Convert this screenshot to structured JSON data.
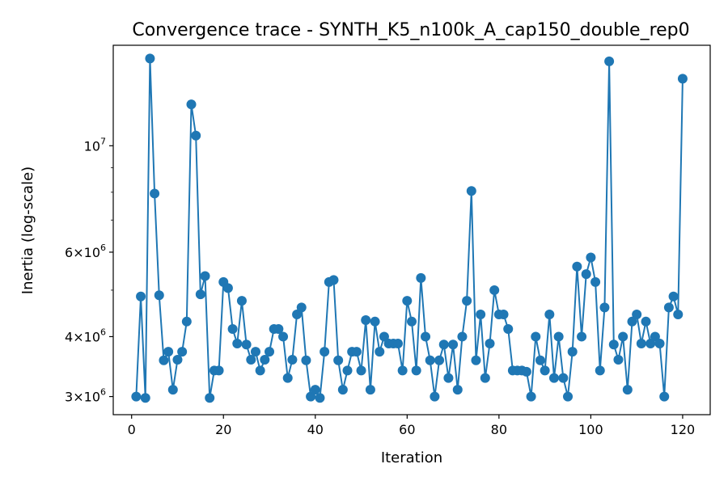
{
  "chart_data": {
    "type": "line",
    "title": "Convergence trace - SYNTH_K5_n100k_A_cap150_double_rep0",
    "xlabel": "Iteration",
    "ylabel": "Inertia (log-scale)",
    "xlim": [
      -4,
      126
    ],
    "ylim": [
      2750000,
      16200000
    ],
    "y_scale": "log",
    "grid": false,
    "x_ticks": [
      0,
      20,
      40,
      60,
      80,
      100,
      120
    ],
    "y_ticks": [
      {
        "value": 3000000,
        "mantissa": "3",
        "base": "10",
        "exp": "6"
      },
      {
        "value": 4000000,
        "mantissa": "4",
        "base": "10",
        "exp": "6"
      },
      {
        "value": 6000000,
        "mantissa": "6",
        "base": "10",
        "exp": "6"
      },
      {
        "value": 10000000,
        "mantissa": "",
        "base": "10",
        "exp": "7"
      }
    ],
    "y_minor_ticks": [
      5000000,
      7000000,
      8000000,
      9000000
    ],
    "series": [
      {
        "color": "#1f77b4",
        "x": [
          1,
          2,
          3,
          4,
          5,
          6,
          7,
          8,
          9,
          10,
          11,
          12,
          13,
          14,
          15,
          16,
          17,
          18,
          19,
          20,
          21,
          22,
          23,
          24,
          25,
          26,
          27,
          28,
          29,
          30,
          31,
          32,
          33,
          34,
          35,
          36,
          37,
          38,
          39,
          40,
          41,
          42,
          43,
          44,
          45,
          46,
          47,
          48,
          49,
          50,
          51,
          52,
          53,
          54,
          55,
          56,
          57,
          58,
          59,
          60,
          61,
          62,
          63,
          64,
          65,
          66,
          67,
          68,
          69,
          70,
          71,
          72,
          73,
          74,
          75,
          76,
          77,
          78,
          79,
          80,
          81,
          82,
          83,
          84,
          85,
          86,
          87,
          88,
          89,
          90,
          91,
          92,
          93,
          94,
          95,
          96,
          97,
          98,
          99,
          100,
          101,
          102,
          103,
          104,
          105,
          106,
          107,
          108,
          109,
          110,
          111,
          112,
          113,
          114,
          115,
          116,
          117,
          118,
          119,
          120
        ],
        "y": [
          3000000,
          4850000,
          2980000,
          15200000,
          7950000,
          4880000,
          3570000,
          3720000,
          3100000,
          3580000,
          3720000,
          4300000,
          12200000,
          10500000,
          4900000,
          5350000,
          2980000,
          3400000,
          3400000,
          5200000,
          5050000,
          4150000,
          3870000,
          4750000,
          3850000,
          3580000,
          3720000,
          3400000,
          3580000,
          3720000,
          4150000,
          4150000,
          4000000,
          3280000,
          3580000,
          4450000,
          4600000,
          3570000,
          3000000,
          3100000,
          2980000,
          3720000,
          5200000,
          5250000,
          3570000,
          3100000,
          3400000,
          3720000,
          3720000,
          3400000,
          4330000,
          3100000,
          4300000,
          3720000,
          4000000,
          3870000,
          3870000,
          3870000,
          3400000,
          4750000,
          4300000,
          3400000,
          5300000,
          4000000,
          3570000,
          3000000,
          3570000,
          3850000,
          3280000,
          3850000,
          3100000,
          4000000,
          4750000,
          8050000,
          3570000,
          4450000,
          3280000,
          3870000,
          5000000,
          4450000,
          4450000,
          4150000,
          3400000,
          3400000,
          3400000,
          3380000,
          3000000,
          4000000,
          3570000,
          3400000,
          4450000,
          3280000,
          4000000,
          3280000,
          3000000,
          3720000,
          5600000,
          4000000,
          5400000,
          5850000,
          5200000,
          3400000,
          4600000,
          15000000,
          3850000,
          3580000,
          4000000,
          3100000,
          4300000,
          4450000,
          3870000,
          4300000,
          3870000,
          4000000,
          3870000,
          3000000,
          4600000,
          4850000,
          4450000,
          13800000
        ]
      }
    ]
  }
}
